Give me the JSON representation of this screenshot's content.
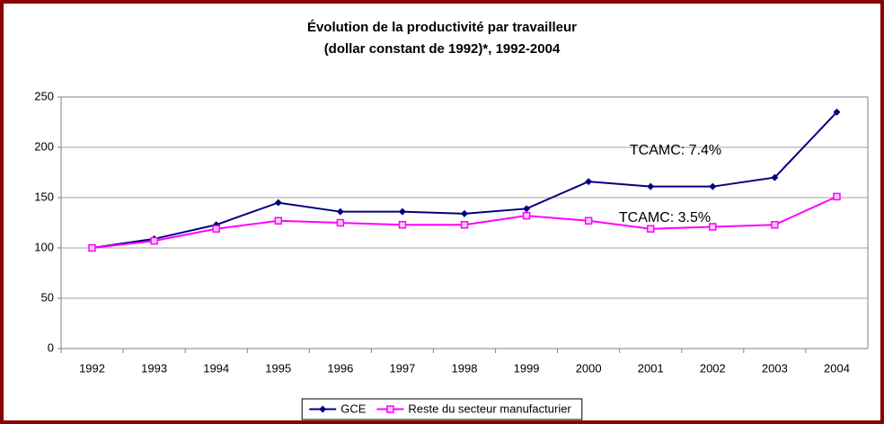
{
  "chart_data": {
    "type": "line",
    "title": [
      "Évolution de la productivité par travailleur",
      "(dollar constant de 1992)*, 1992-2004"
    ],
    "categories": [
      "1992",
      "1993",
      "1994",
      "1995",
      "1996",
      "1997",
      "1998",
      "1999",
      "2000",
      "2001",
      "2002",
      "2003",
      "2004"
    ],
    "series": [
      {
        "name": "GCE",
        "color": "#000080",
        "marker": "diamond",
        "values": [
          100,
          109,
          123,
          145,
          136,
          136,
          134,
          139,
          166,
          161,
          161,
          170,
          235
        ]
      },
      {
        "name": "Reste du secteur manufacturier",
        "color": "#ff00ff",
        "marker": "square",
        "values": [
          100,
          107,
          119,
          127,
          125,
          123,
          123,
          132,
          127,
          119,
          121,
          123,
          151
        ]
      }
    ],
    "annotations": [
      {
        "text": "TCAMC: 7.4%",
        "series": 0
      },
      {
        "text": "TCAMC: 3.5%",
        "series": 1
      }
    ],
    "ylim": [
      0,
      250
    ],
    "yticks": [
      0,
      50,
      100,
      150,
      200,
      250
    ],
    "grid": true,
    "legend": "bottom"
  }
}
